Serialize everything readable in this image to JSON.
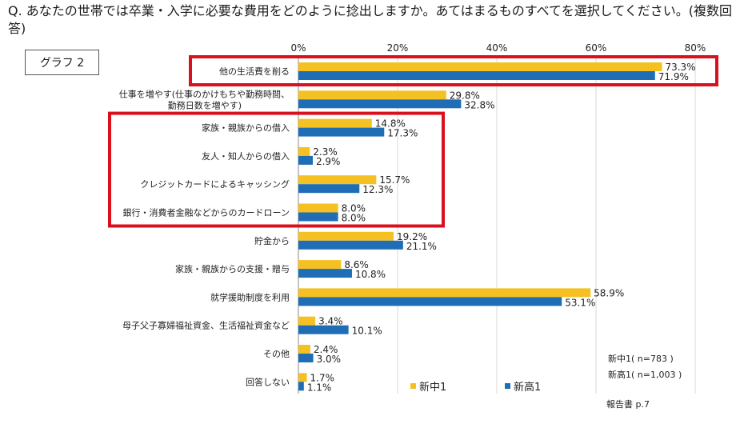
{
  "question": "Q. あなたの世帯では卒業・入学に必要な費用をどのように捻出しますか。あてはまるものすべてを選択してください。(複数回答)",
  "graph_label": "グラフ 2",
  "notes": {
    "n_chu": "新中1( n=783 )",
    "n_ko": "新高1( n=1,003 )",
    "source": "報告書 p.7"
  },
  "colors": {
    "series_a": "#f5c021",
    "series_b": "#1f6eb5",
    "highlight": "#d9101e",
    "grid": "#d9d9d9"
  },
  "chart_data": {
    "type": "bar",
    "orientation": "horizontal",
    "categories": [
      [
        "他の生活費を削る"
      ],
      [
        "仕事を増やす(仕事のかけもちや勤務時間、",
        "勤務日数を増やす)"
      ],
      [
        "家族・親族からの借入"
      ],
      [
        "友人・知人からの借入"
      ],
      [
        "クレジットカードによるキャッシング"
      ],
      [
        "銀行・消費者金融などからのカードローン"
      ],
      [
        "貯金から"
      ],
      [
        "家族・親族からの支援・贈与"
      ],
      [
        "就学援助制度を利用"
      ],
      [
        "母子父子寡婦福祉資金、生活福祉資金など"
      ],
      [
        "その他"
      ],
      [
        "回答しない"
      ]
    ],
    "series": [
      {
        "name": "新中1",
        "values": [
          73.3,
          29.8,
          14.8,
          2.3,
          15.7,
          8.0,
          19.2,
          8.6,
          58.9,
          3.4,
          2.4,
          1.7
        ]
      },
      {
        "name": "新高1",
        "values": [
          71.9,
          32.8,
          17.3,
          2.9,
          12.3,
          8.0,
          21.1,
          10.8,
          53.1,
          10.1,
          3.0,
          1.1
        ]
      }
    ],
    "xlim": [
      0,
      80
    ],
    "xticks": [
      0,
      20,
      40,
      60,
      80
    ],
    "tick_suffix": "%",
    "grid": true,
    "legend_position": "bottom-right",
    "highlight_groups": [
      [
        0
      ],
      [
        2,
        3,
        4,
        5
      ]
    ]
  }
}
